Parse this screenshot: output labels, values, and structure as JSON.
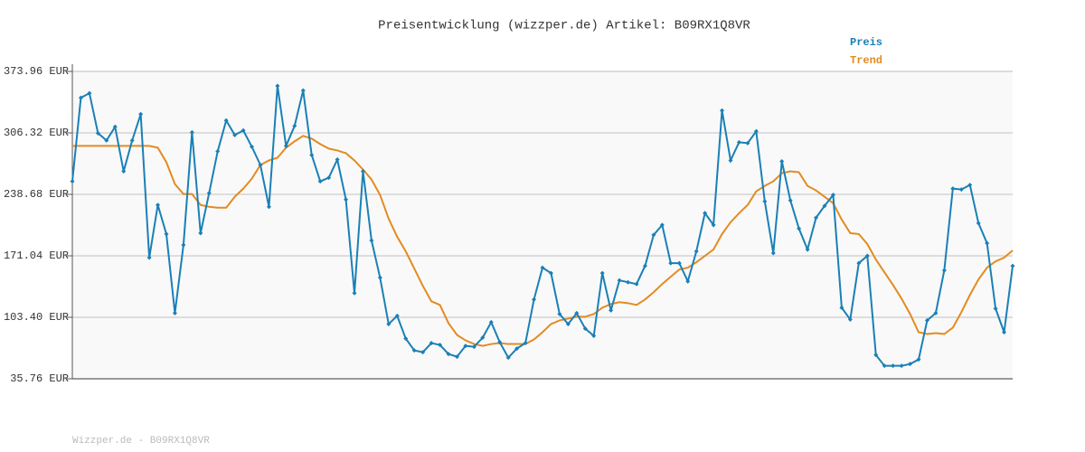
{
  "chart_data": {
    "type": "line",
    "title": "Preisentwicklung (wizzper.de) Artikel: B09RX1Q8VR",
    "footer": "Wizzper.de - B09RX1Q8VR",
    "ylim": [
      35.76,
      373.96
    ],
    "yticks": [
      {
        "value": 35.76,
        "label": "35.76 EUR"
      },
      {
        "value": 103.4,
        "label": "103.40 EUR"
      },
      {
        "value": 171.04,
        "label": "171.04 EUR"
      },
      {
        "value": 238.68,
        "label": "238.68 EUR"
      },
      {
        "value": 306.32,
        "label": "306.32 EUR"
      },
      {
        "value": 373.96,
        "label": "373.96 EUR"
      }
    ],
    "grid": true,
    "legend": "top-right",
    "series": [
      {
        "name": "Preis",
        "color": "#1a80b6",
        "markers": true,
        "values": [
          253,
          345,
          350,
          306,
          298,
          313,
          264,
          298,
          327,
          169,
          227,
          195,
          108,
          183,
          307,
          196,
          240,
          286,
          320,
          304,
          309,
          291,
          271,
          225,
          358,
          292,
          314,
          353,
          282,
          253,
          257,
          277,
          233,
          130,
          264,
          188,
          147,
          96,
          105,
          80,
          67,
          65,
          75,
          73,
          63,
          60,
          72,
          71,
          81,
          98,
          76,
          59,
          69,
          75,
          123,
          158,
          152,
          107,
          96,
          108,
          91,
          83,
          152,
          111,
          144,
          142,
          140,
          160,
          194,
          205,
          163,
          163,
          143,
          176,
          218,
          205,
          331,
          276,
          296,
          295,
          308,
          231,
          174,
          275,
          232,
          201,
          178,
          213,
          226,
          238,
          114,
          101,
          163,
          171,
          62,
          50,
          50,
          50,
          52,
          57,
          100,
          108,
          155,
          245,
          244,
          249,
          207,
          185,
          113,
          87,
          160
        ]
      },
      {
        "name": "Trend",
        "color": "#e38b22",
        "markers": false,
        "values": [
          292,
          292,
          292,
          292,
          292,
          292,
          292,
          292,
          292,
          292,
          290,
          274,
          250,
          239,
          239,
          227,
          225,
          224,
          224,
          236,
          245,
          256,
          271,
          276,
          279,
          290,
          297,
          303,
          300,
          294,
          289,
          287,
          284,
          276,
          266,
          255,
          238,
          212,
          192,
          176,
          157,
          138,
          121,
          117,
          97,
          84,
          78,
          74,
          72,
          74,
          75,
          74,
          74,
          74,
          79,
          87,
          96,
          100,
          102,
          104,
          104,
          107,
          114,
          118,
          120,
          119,
          117,
          123,
          131,
          140,
          148,
          156,
          158,
          164,
          171,
          178,
          195,
          208,
          218,
          227,
          242,
          248,
          253,
          262,
          264,
          263,
          248,
          243,
          236,
          229,
          211,
          196,
          195,
          184,
          167,
          153,
          139,
          124,
          107,
          87,
          85,
          86,
          85,
          92,
          109,
          128,
          145,
          158,
          165,
          169,
          177
        ]
      }
    ]
  }
}
